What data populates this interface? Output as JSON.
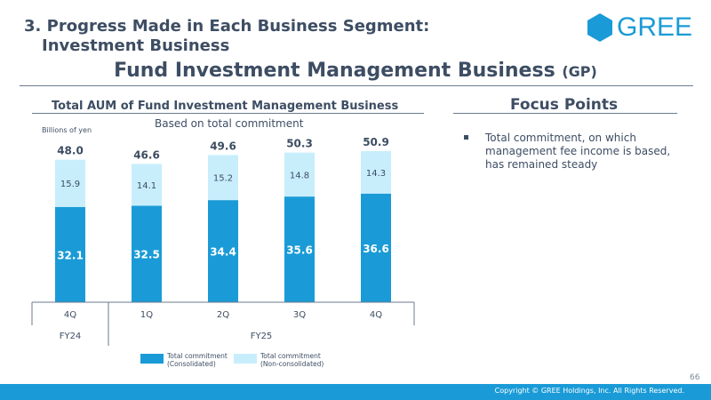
{
  "header": {
    "section_title_line1": "3. Progress Made in Each Business Segment:",
    "section_title_line2": "Investment Business",
    "logo_text": "GREE",
    "main_title": "Fund Investment Management Business",
    "main_title_suffix": "(GP)"
  },
  "chart_heading": "Total AUM of Fund Investment Management Business",
  "focus": {
    "heading": "Focus Points",
    "points": [
      "Total commitment, on which management fee income is based, has remained steady"
    ]
  },
  "chart_data": {
    "type": "bar",
    "stacked": true,
    "title": "Based on total commitment",
    "unit_label": "Billions of yen",
    "categories": [
      "4Q",
      "1Q",
      "2Q",
      "3Q",
      "4Q"
    ],
    "fiscal_groups": [
      {
        "label": "FY24",
        "span": 1
      },
      {
        "label": "FY25",
        "span": 4
      }
    ],
    "series": [
      {
        "name": "Total commitment (Consolidated)",
        "name_line1": "Total commitment",
        "name_line2": "(Consolidated)",
        "color": "#1a9bd7",
        "values": [
          32.1,
          32.5,
          34.4,
          35.6,
          36.6
        ]
      },
      {
        "name": "Total commitment (Non-consolidated)",
        "name_line1": "Total commitment",
        "name_line2": "(Non-consolidated)",
        "color": "#c8eefc",
        "values": [
          15.9,
          14.1,
          15.2,
          14.8,
          14.3
        ]
      }
    ],
    "totals": [
      48.0,
      46.6,
      49.6,
      50.3,
      50.9
    ],
    "total_labels": [
      "48.0",
      "46.6",
      "49.6",
      "50.3",
      "50.9"
    ],
    "ylim": [
      0,
      53
    ],
    "grid": false,
    "legend": "bottom"
  },
  "footer": {
    "page_number": "66",
    "copyright": "Copyright © GREE Holdings, Inc. All Rights Reserved."
  }
}
